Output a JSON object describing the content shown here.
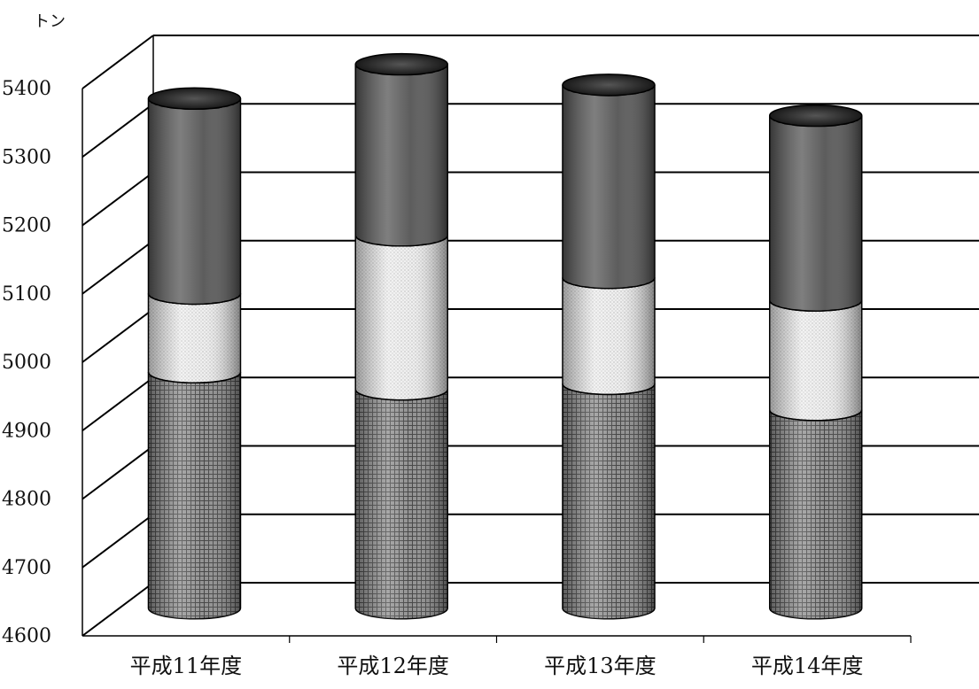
{
  "chart_data": {
    "type": "bar",
    "style": "stacked-3d-cylinder",
    "unit_label": "トン",
    "categories": [
      "平成11年度",
      "平成12年度",
      "平成13年度",
      "平成14年度"
    ],
    "series": [
      {
        "values": [
          4945,
          4920,
          4928,
          4890
        ]
      },
      {
        "values": [
          115,
          225,
          155,
          160
        ]
      },
      {
        "values": [
          285,
          250,
          282,
          270
        ]
      }
    ],
    "ylim": [
      4600,
      5400
    ],
    "y_ticks": [
      4600,
      4700,
      4800,
      4900,
      5000,
      5100,
      5200,
      5300,
      5400
    ],
    "grid": true,
    "legend": "none"
  }
}
